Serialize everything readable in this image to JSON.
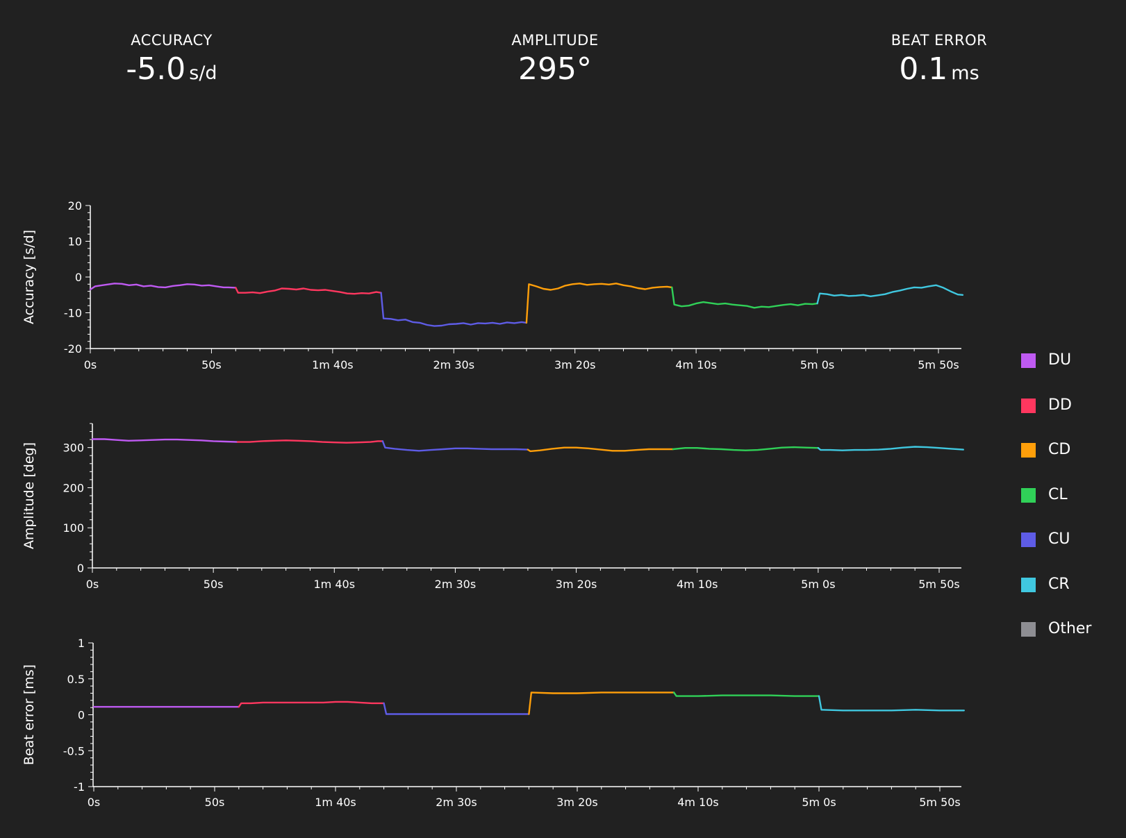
{
  "stats": {
    "accuracy": {
      "label": "ACCURACY",
      "value": "-5.0",
      "unit": "s/d"
    },
    "amplitude": {
      "label": "AMPLITUDE",
      "value": "295°",
      "unit": ""
    },
    "beat_error": {
      "label": "BEAT ERROR",
      "value": "0.1",
      "unit": "ms"
    }
  },
  "legend": [
    {
      "name": "DU",
      "color": "#bf5af2"
    },
    {
      "name": "DD",
      "color": "#ff375f"
    },
    {
      "name": "CD",
      "color": "#ff9f0a"
    },
    {
      "name": "CL",
      "color": "#30d158"
    },
    {
      "name": "CU",
      "color": "#5e5ce6"
    },
    {
      "name": "CR",
      "color": "#40c8e0"
    },
    {
      "name": "Other",
      "color": "#8e8e93"
    }
  ],
  "chart_data": [
    {
      "type": "line",
      "ylabel": "Accuracy [s/d]",
      "xlabel": "",
      "xlim": [
        0,
        360
      ],
      "ylim": [
        -20,
        20
      ],
      "yticks": [
        20,
        10,
        0,
        -10,
        -20
      ],
      "xticks": [
        {
          "value": 0,
          "label": "0s"
        },
        {
          "value": 50,
          "label": "50s"
        },
        {
          "value": 100,
          "label": "1m 40s"
        },
        {
          "value": 150,
          "label": "2m 30s"
        },
        {
          "value": 200,
          "label": "3m 20s"
        },
        {
          "value": 250,
          "label": "4m 10s"
        },
        {
          "value": 300,
          "label": "5m 0s"
        },
        {
          "value": 350,
          "label": "5m 50s"
        }
      ],
      "series": [
        {
          "name": "DU",
          "color": "#bf5af2",
          "x": [
            0,
            2,
            5,
            8,
            10,
            13,
            16,
            19,
            22,
            25,
            28,
            31,
            34,
            37,
            40,
            43,
            46,
            49,
            52,
            55,
            57,
            60
          ],
          "y": [
            -3.5,
            -2.6,
            -2.3,
            -2.0,
            -1.8,
            -1.9,
            -2.3,
            -2.1,
            -2.6,
            -2.4,
            -2.8,
            -2.9,
            -2.5,
            -2.3,
            -2.0,
            -2.1,
            -2.4,
            -2.3,
            -2.6,
            -2.9,
            -2.9,
            -3.0
          ]
        },
        {
          "name": "DD",
          "color": "#ff375f",
          "x": [
            60,
            61,
            64,
            67,
            70,
            73,
            76,
            79,
            82,
            85,
            88,
            91,
            94,
            97,
            100,
            103,
            106,
            109,
            112,
            115,
            118,
            120
          ],
          "y": [
            -3.0,
            -4.4,
            -4.4,
            -4.3,
            -4.5,
            -4.1,
            -3.8,
            -3.2,
            -3.3,
            -3.5,
            -3.2,
            -3.6,
            -3.7,
            -3.6,
            -3.9,
            -4.2,
            -4.6,
            -4.7,
            -4.5,
            -4.6,
            -4.2,
            -4.4
          ]
        },
        {
          "name": "CU",
          "color": "#5e5ce6",
          "x": [
            120,
            121,
            124,
            127,
            130,
            133,
            136,
            139,
            142,
            145,
            148,
            151,
            154,
            157,
            160,
            163,
            166,
            169,
            172,
            175,
            178,
            180
          ],
          "y": [
            -4.4,
            -11.6,
            -11.7,
            -12.1,
            -11.9,
            -12.6,
            -12.8,
            -13.4,
            -13.7,
            -13.6,
            -13.2,
            -13.1,
            -12.9,
            -13.3,
            -12.9,
            -13.0,
            -12.8,
            -13.1,
            -12.7,
            -12.9,
            -12.6,
            -12.8
          ]
        },
        {
          "name": "CD",
          "color": "#ff9f0a",
          "x": [
            180,
            181,
            184,
            187,
            190,
            193,
            196,
            199,
            202,
            205,
            208,
            211,
            214,
            217,
            220,
            223,
            226,
            229,
            232,
            235,
            238,
            240
          ],
          "y": [
            -12.8,
            -2.0,
            -2.6,
            -3.3,
            -3.6,
            -3.2,
            -2.4,
            -2.0,
            -1.8,
            -2.2,
            -2.0,
            -1.9,
            -2.1,
            -1.8,
            -2.3,
            -2.6,
            -3.1,
            -3.4,
            -3.0,
            -2.8,
            -2.7,
            -2.9
          ]
        },
        {
          "name": "CL",
          "color": "#30d158",
          "x": [
            240,
            241,
            244,
            247,
            250,
            253,
            256,
            259,
            262,
            265,
            268,
            271,
            274,
            277,
            280,
            283,
            286,
            289,
            292,
            295,
            298,
            300
          ],
          "y": [
            -2.9,
            -7.7,
            -8.2,
            -8.0,
            -7.4,
            -7.0,
            -7.3,
            -7.6,
            -7.4,
            -7.7,
            -7.9,
            -8.1,
            -8.6,
            -8.3,
            -8.4,
            -8.1,
            -7.8,
            -7.6,
            -7.9,
            -7.5,
            -7.6,
            -7.4
          ]
        },
        {
          "name": "CR",
          "color": "#40c8e0",
          "x": [
            300,
            301,
            304,
            307,
            310,
            313,
            316,
            319,
            322,
            325,
            328,
            331,
            334,
            337,
            340,
            343,
            346,
            349,
            352,
            355,
            358,
            360
          ],
          "y": [
            -7.4,
            -4.6,
            -4.8,
            -5.2,
            -5.0,
            -5.3,
            -5.2,
            -5.0,
            -5.4,
            -5.1,
            -4.8,
            -4.2,
            -3.8,
            -3.3,
            -2.9,
            -3.0,
            -2.6,
            -2.3,
            -3.0,
            -4.0,
            -4.9,
            -5.0
          ]
        }
      ]
    },
    {
      "type": "line",
      "ylabel": "Amplitude [deg]",
      "xlabel": "",
      "xlim": [
        0,
        360
      ],
      "ylim": [
        0,
        360
      ],
      "yticks": [
        300,
        200,
        100,
        0
      ],
      "xticks": [
        {
          "value": 0,
          "label": "0s"
        },
        {
          "value": 50,
          "label": "50s"
        },
        {
          "value": 100,
          "label": "1m 40s"
        },
        {
          "value": 150,
          "label": "2m 30s"
        },
        {
          "value": 200,
          "label": "3m 20s"
        },
        {
          "value": 250,
          "label": "4m 10s"
        },
        {
          "value": 300,
          "label": "5m 0s"
        },
        {
          "value": 350,
          "label": "5m 50s"
        }
      ],
      "series": [
        {
          "name": "DU",
          "color": "#bf5af2",
          "x": [
            0,
            5,
            10,
            15,
            20,
            25,
            30,
            35,
            40,
            45,
            50,
            55,
            60
          ],
          "y": [
            321,
            321,
            319,
            317,
            318,
            319,
            320,
            320,
            319,
            318,
            316,
            315,
            314
          ]
        },
        {
          "name": "DD",
          "color": "#ff375f",
          "x": [
            60,
            65,
            70,
            75,
            80,
            85,
            90,
            95,
            100,
            105,
            110,
            115,
            118,
            120
          ],
          "y": [
            314,
            314,
            316,
            317,
            318,
            317,
            316,
            314,
            313,
            312,
            313,
            314,
            316,
            316
          ]
        },
        {
          "name": "CU",
          "color": "#5e5ce6",
          "x": [
            120,
            121,
            125,
            130,
            135,
            140,
            145,
            150,
            155,
            160,
            165,
            170,
            175,
            180
          ],
          "y": [
            316,
            300,
            297,
            294,
            292,
            294,
            296,
            298,
            298,
            297,
            296,
            296,
            296,
            295
          ]
        },
        {
          "name": "CD",
          "color": "#ff9f0a",
          "x": [
            180,
            181,
            185,
            190,
            195,
            200,
            205,
            210,
            215,
            220,
            225,
            230,
            235,
            240
          ],
          "y": [
            295,
            291,
            293,
            297,
            300,
            300,
            298,
            295,
            292,
            292,
            294,
            296,
            296,
            296
          ]
        },
        {
          "name": "CL",
          "color": "#30d158",
          "x": [
            240,
            245,
            250,
            255,
            260,
            265,
            270,
            275,
            280,
            285,
            290,
            295,
            300
          ],
          "y": [
            296,
            299,
            299,
            297,
            296,
            294,
            293,
            294,
            297,
            300,
            301,
            300,
            299
          ]
        },
        {
          "name": "CR",
          "color": "#40c8e0",
          "x": [
            300,
            301,
            305,
            310,
            315,
            320,
            325,
            330,
            335,
            340,
            345,
            350,
            355,
            360
          ],
          "y": [
            299,
            294,
            294,
            293,
            294,
            294,
            295,
            297,
            300,
            302,
            301,
            299,
            297,
            295
          ]
        }
      ]
    },
    {
      "type": "line",
      "ylabel": "Beat error [ms]",
      "xlabel": "",
      "xlim": [
        0,
        360
      ],
      "ylim": [
        -1,
        1
      ],
      "yticks": [
        1,
        0.5,
        0,
        -0.5,
        -1
      ],
      "xticks": [
        {
          "value": 0,
          "label": "0s"
        },
        {
          "value": 50,
          "label": "50s"
        },
        {
          "value": 100,
          "label": "1m 40s"
        },
        {
          "value": 150,
          "label": "2m 30s"
        },
        {
          "value": 200,
          "label": "3m 20s"
        },
        {
          "value": 250,
          "label": "4m 10s"
        },
        {
          "value": 300,
          "label": "5m 0s"
        },
        {
          "value": 350,
          "label": "5m 50s"
        }
      ],
      "series": [
        {
          "name": "DU",
          "color": "#bf5af2",
          "x": [
            0,
            10,
            20,
            30,
            40,
            50,
            59,
            60
          ],
          "y": [
            0.11,
            0.11,
            0.11,
            0.11,
            0.11,
            0.11,
            0.11,
            0.11
          ]
        },
        {
          "name": "DD",
          "color": "#ff375f",
          "x": [
            60,
            61,
            65,
            70,
            75,
            80,
            85,
            90,
            95,
            100,
            105,
            110,
            115,
            119,
            120
          ],
          "y": [
            0.11,
            0.16,
            0.16,
            0.17,
            0.17,
            0.17,
            0.17,
            0.17,
            0.17,
            0.18,
            0.18,
            0.17,
            0.16,
            0.16,
            0.16
          ]
        },
        {
          "name": "CU",
          "color": "#5e5ce6",
          "x": [
            120,
            121,
            130,
            140,
            150,
            160,
            170,
            179,
            180
          ],
          "y": [
            0.16,
            0.01,
            0.01,
            0.01,
            0.01,
            0.01,
            0.01,
            0.01,
            0.01
          ]
        },
        {
          "name": "CD",
          "color": "#ff9f0a",
          "x": [
            180,
            181,
            190,
            200,
            210,
            220,
            230,
            239,
            240
          ],
          "y": [
            0.01,
            0.31,
            0.3,
            0.3,
            0.31,
            0.31,
            0.31,
            0.31,
            0.31
          ]
        },
        {
          "name": "CL",
          "color": "#30d158",
          "x": [
            240,
            241,
            250,
            260,
            270,
            280,
            290,
            299,
            300
          ],
          "y": [
            0.31,
            0.26,
            0.26,
            0.27,
            0.27,
            0.27,
            0.26,
            0.26,
            0.26
          ]
        },
        {
          "name": "CR",
          "color": "#40c8e0",
          "x": [
            300,
            301,
            310,
            320,
            330,
            340,
            350,
            360
          ],
          "y": [
            0.26,
            0.07,
            0.06,
            0.06,
            0.06,
            0.07,
            0.06,
            0.06
          ]
        }
      ]
    }
  ]
}
